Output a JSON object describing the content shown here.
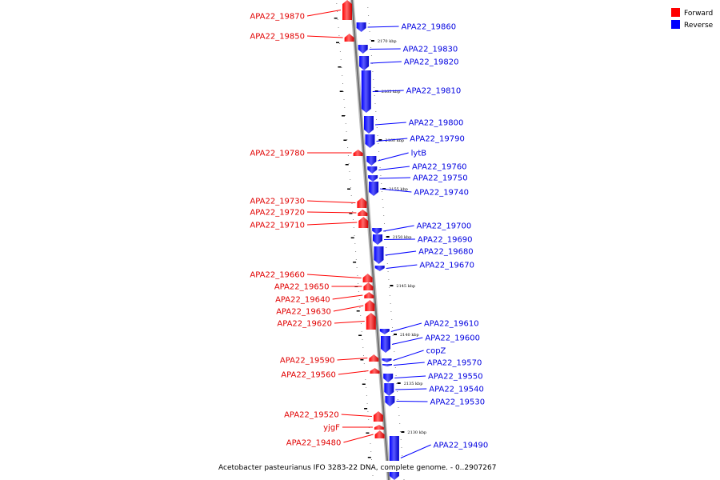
{
  "legend": {
    "forward_label": "Forward",
    "reverse_label": "Reverse",
    "forward_color": "#ff0000",
    "reverse_color": "#0000ff"
  },
  "caption": "Acetobacter pasteurianus IFO 3283-22 DNA, complete genome. - 0..2907267",
  "ticks": [
    "2170 kbp",
    "2165 kbp",
    "2160 kbp",
    "2155 kbp",
    "2150 kbp",
    "2145 kbp",
    "2140 kbp",
    "2135 kbp",
    "2130 kbp"
  ],
  "forward_genes": [
    "APA22_19870",
    "APA22_19850",
    "APA22_19780",
    "APA22_19730",
    "APA22_19720",
    "APA22_19710",
    "APA22_19660",
    "APA22_19650",
    "APA22_19640",
    "APA22_19630",
    "APA22_19620",
    "APA22_19590",
    "APA22_19560",
    "APA22_19520",
    "yjgF",
    "APA22_19480"
  ],
  "reverse_genes": [
    "APA22_19860",
    "APA22_19830",
    "APA22_19820",
    "APA22_19810",
    "APA22_19800",
    "APA22_19790",
    "lytB",
    "APA22_19760",
    "APA22_19750",
    "APA22_19740",
    "APA22_19700",
    "APA22_19690",
    "APA22_19680",
    "APA22_19670",
    "APA22_19610",
    "APA22_19600",
    "copZ",
    "APA22_19570",
    "APA22_19550",
    "APA22_19540",
    "APA22_19530",
    "APA22_19490"
  ]
}
